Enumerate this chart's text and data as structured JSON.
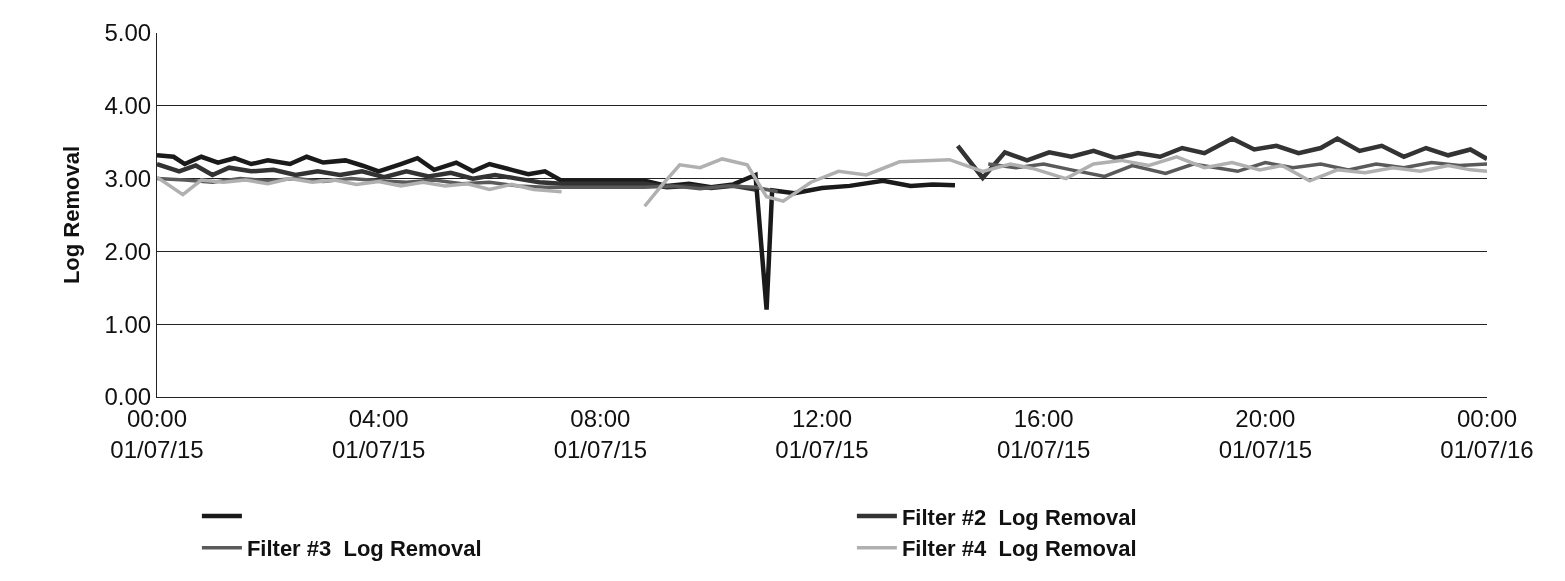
{
  "chart_data": {
    "type": "line",
    "ylabel": "Log Removal",
    "xlim": [
      "--07-01T00:00",
      "--07-02T00:00"
    ],
    "xticks": [
      {
        "value": "--07-01T00:00",
        "label": "00:00\n01/07/15"
      },
      {
        "value": "--07-01T04:00",
        "label": "04:00\n01/07/15"
      },
      {
        "value": "--07-01T08:00",
        "label": "08:00\n01/07/15"
      },
      {
        "value": "--07-01T12:00",
        "label": "12:00\n01/07/15"
      },
      {
        "value": "--07-01T16:00",
        "label": "16:00\n01/07/15"
      },
      {
        "value": "--07-01T20:00",
        "label": "20:00\n01/07/15"
      },
      {
        "value": "--07-02T00:00",
        "label": "00:00\n01/07/16"
      }
    ],
    "ylim": [
      0,
      5
    ],
    "yticks": [
      {
        "value": 0,
        "label": "0.00"
      },
      {
        "value": 1,
        "label": "1.00"
      },
      {
        "value": 2,
        "label": "2.00"
      },
      {
        "value": 3,
        "label": "3.00"
      },
      {
        "value": 4,
        "label": "4.00"
      },
      {
        "value": 5,
        "label": "5.00"
      }
    ],
    "grid": "y",
    "legend": "bottom",
    "series": [
      {
        "color": "#1a1a1a",
        "x": [
          "--07-01T00:00",
          "--07-01T00:18",
          "--07-01T00:30",
          "--07-01T00:48",
          "--07-01T01:06",
          "--07-01T01:24",
          "--07-01T01:42",
          "--07-01T02:00",
          "--07-01T02:24",
          "--07-01T02:42",
          "--07-01T03:00",
          "--07-01T03:24",
          "--07-01T03:42",
          "--07-01T04:00",
          "--07-01T04:24",
          "--07-01T04:42",
          "--07-01T05:00",
          "--07-01T05:24",
          "--07-01T05:42",
          "--07-01T06:00",
          "--07-01T06:24",
          "--07-01T06:42",
          "--07-01T07:00",
          "--07-01T07:18",
          "--07-01T08:48",
          "--07-01T09:12",
          "--07-01T09:36",
          "--07-01T10:00",
          "--07-01T10:24",
          "--07-01T10:48",
          "--07-01T11:00",
          "--07-01T11:06",
          "--07-01T11:30",
          "--07-01T12:00",
          "--07-01T12:30",
          "--07-01T13:06",
          "--07-01T13:36",
          "--07-01T14:00",
          "--07-01T14:24"
        ],
        "values": [
          3.32,
          3.3,
          3.2,
          3.3,
          3.22,
          3.28,
          3.2,
          3.25,
          3.2,
          3.3,
          3.22,
          3.25,
          3.18,
          3.1,
          3.2,
          3.28,
          3.12,
          3.22,
          3.1,
          3.2,
          3.12,
          3.06,
          3.1,
          2.97,
          2.97,
          2.9,
          2.93,
          2.88,
          2.92,
          3.05,
          1.2,
          2.84,
          2.8,
          2.87,
          2.9,
          2.97,
          2.9,
          2.92,
          2.91
        ]
      },
      {
        "name": "Filter #2  Log Removal",
        "color": "#333333",
        "x": [
          "--07-01T00:00",
          "--07-01T00:24",
          "--07-01T00:42",
          "--07-01T01:00",
          "--07-01T01:18",
          "--07-01T01:42",
          "--07-01T02:06",
          "--07-01T02:30",
          "--07-01T02:54",
          "--07-01T03:18",
          "--07-01T03:42",
          "--07-01T04:06",
          "--07-01T04:30",
          "--07-01T04:54",
          "--07-01T05:18",
          "--07-01T05:42",
          "--07-01T06:06",
          "--07-01T06:30",
          "--07-01T06:54",
          "--07-01T07:18",
          "--07-01T08:48",
          "--07-01T09:12",
          "--07-01T09:36",
          "--07-01T10:00",
          "--07-01T10:24",
          "--07-01T10:48",
          "--07-01T12:30",
          "--07-01T14:27",
          "--07-01T14:54",
          "--07-01T15:18",
          "--07-01T15:42",
          "--07-01T16:06",
          "--07-01T16:30",
          "--07-01T16:54",
          "--07-01T17:18",
          "--07-01T17:42",
          "--07-01T18:06",
          "--07-01T18:30",
          "--07-01T18:54",
          "--07-01T19:24",
          "--07-01T19:48",
          "--07-01T20:12",
          "--07-01T20:36",
          "--07-01T21:00",
          "--07-01T21:18",
          "--07-01T21:42",
          "--07-01T22:06",
          "--07-01T22:30",
          "--07-01T22:54",
          "--07-01T23:18",
          "--07-01T23:42",
          "--07-02T00:00"
        ],
        "values": [
          3.2,
          3.1,
          3.18,
          3.05,
          3.15,
          3.1,
          3.12,
          3.05,
          3.1,
          3.05,
          3.1,
          3.02,
          3.1,
          3.03,
          3.08,
          3.0,
          3.05,
          3.0,
          2.95,
          2.93,
          2.93,
          2.88,
          2.9,
          2.87,
          2.9,
          2.85,
          null,
          3.45,
          3.01,
          3.36,
          3.25,
          3.36,
          3.3,
          3.38,
          3.28,
          3.35,
          3.3,
          3.42,
          3.35,
          3.55,
          3.4,
          3.45,
          3.35,
          3.42,
          3.55,
          3.38,
          3.45,
          3.3,
          3.42,
          3.32,
          3.4,
          3.27
        ]
      },
      {
        "name": "Filter #3  Log Removal",
        "color": "#5a5a5a",
        "x": [
          "--07-01T00:00",
          "--07-01T00:30",
          "--07-01T01:00",
          "--07-01T01:30",
          "--07-01T02:00",
          "--07-01T02:30",
          "--07-01T03:00",
          "--07-01T03:30",
          "--07-01T04:00",
          "--07-01T04:30",
          "--07-01T05:00",
          "--07-01T05:30",
          "--07-01T06:00",
          "--07-01T06:30",
          "--07-01T07:00",
          "--07-01T07:18",
          "--07-01T08:48",
          "--07-01T09:18",
          "--07-01T09:48",
          "--07-01T10:18",
          "--07-01T10:48",
          "--07-01T11:12",
          "--07-01T12:30",
          "--07-01T15:00",
          "--07-01T15:30",
          "--07-01T16:00",
          "--07-01T16:30",
          "--07-01T17:06",
          "--07-01T17:36",
          "--07-01T18:12",
          "--07-01T18:42",
          "--07-01T19:30",
          "--07-01T20:00",
          "--07-01T20:30",
          "--07-01T21:00",
          "--07-01T21:30",
          "--07-01T22:00",
          "--07-01T22:30",
          "--07-01T23:00",
          "--07-01T23:30",
          "--07-02T00:00"
        ],
        "values": [
          3.0,
          2.98,
          2.95,
          3.0,
          2.97,
          3.0,
          2.96,
          3.0,
          2.97,
          2.95,
          2.98,
          2.93,
          2.95,
          2.9,
          2.88,
          2.88,
          2.88,
          2.9,
          2.86,
          2.9,
          2.88,
          2.82,
          null,
          3.2,
          3.15,
          3.2,
          3.12,
          3.03,
          3.18,
          3.07,
          3.2,
          3.1,
          3.22,
          3.15,
          3.2,
          3.12,
          3.2,
          3.15,
          3.22,
          3.18,
          3.2
        ]
      },
      {
        "name": "Filter #4  Log Removal",
        "color": "#b0b0b0",
        "x": [
          "--07-01T00:00",
          "--07-01T00:28",
          "--07-01T00:48",
          "--07-01T01:12",
          "--07-01T01:36",
          "--07-01T02:00",
          "--07-01T02:24",
          "--07-01T02:48",
          "--07-01T03:12",
          "--07-01T03:36",
          "--07-01T04:00",
          "--07-01T04:24",
          "--07-01T04:48",
          "--07-01T05:12",
          "--07-01T05:36",
          "--07-01T06:00",
          "--07-01T06:24",
          "--07-01T06:48",
          "--07-01T07:18",
          "--07-01T08:00",
          "--07-01T08:48",
          "--07-01T09:06",
          "--07-01T09:26",
          "--07-01T09:48",
          "--07-01T10:12",
          "--07-01T10:39",
          "--07-01T11:00",
          "--07-01T11:18",
          "--07-01T11:48",
          "--07-01T12:18",
          "--07-01T12:48",
          "--07-01T13:24",
          "--07-01T14:18",
          "--07-01T14:54",
          "--07-01T15:24",
          "--07-01T15:48",
          "--07-01T16:24",
          "--07-01T16:54",
          "--07-01T17:24",
          "--07-01T17:54",
          "--07-01T18:24",
          "--07-01T18:54",
          "--07-01T19:24",
          "--07-01T19:54",
          "--07-01T20:18",
          "--07-01T20:48",
          "--07-01T21:18",
          "--07-01T21:48",
          "--07-01T22:18",
          "--07-01T22:48",
          "--07-01T23:18",
          "--07-01T23:42",
          "--07-02T00:00"
        ],
        "values": [
          3.02,
          2.78,
          2.98,
          2.95,
          2.98,
          2.93,
          3.0,
          2.95,
          2.98,
          2.92,
          2.96,
          2.9,
          2.95,
          2.9,
          2.93,
          2.85,
          2.92,
          2.85,
          2.82,
          null,
          2.62,
          2.9,
          3.19,
          3.15,
          3.27,
          3.19,
          2.75,
          2.69,
          2.95,
          3.1,
          3.05,
          3.23,
          3.26,
          3.1,
          3.2,
          3.14,
          3.0,
          3.2,
          3.25,
          3.18,
          3.3,
          3.15,
          3.22,
          3.12,
          3.18,
          2.97,
          3.12,
          3.08,
          3.15,
          3.1,
          3.18,
          3.12,
          3.1
        ]
      }
    ]
  }
}
